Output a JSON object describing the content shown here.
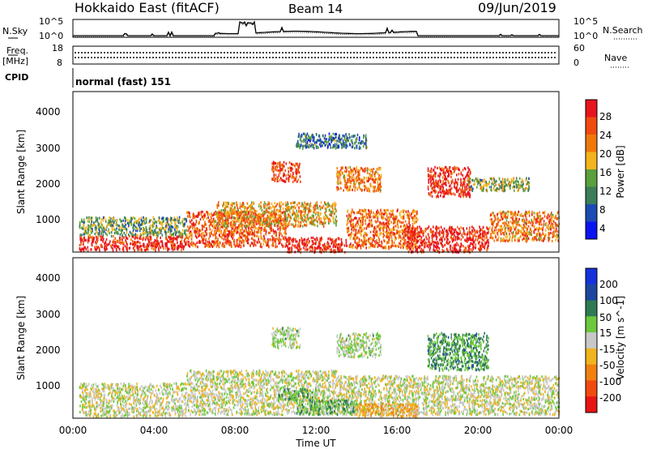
{
  "header": {
    "site": "Hokkaido East (fitACF)",
    "beam": "Beam 14",
    "date": "09/Jun/2019"
  },
  "noise_panel": {
    "left_label": "N.Sky",
    "right_label": "N.Search",
    "ticks": [
      "10^5",
      "10^0"
    ]
  },
  "freq_panel": {
    "left_label_1": "Freq.",
    "left_label_2": "[MHz]",
    "left_ticks": [
      "18",
      "8"
    ],
    "right_label": "Nave",
    "right_ticks": [
      "60",
      "0"
    ]
  },
  "cpid_panel": {
    "label": "CPID",
    "mode": "normal (fast) 151"
  },
  "chart_data": [
    {
      "type": "heatmap",
      "title": "",
      "xlabel": "Time UT",
      "ylabel": "Slant Range [km]",
      "y_ticks": [
        "4000",
        "3000",
        "2000",
        "1000"
      ],
      "x_ticks": [
        "00:00",
        "04:00",
        "08:00",
        "12:00",
        "16:00",
        "20:00",
        "00:00"
      ],
      "ylim": [
        180,
        4500
      ],
      "xlim": [
        0,
        24
      ],
      "colorbar": {
        "label": "Power [dB]",
        "tick_labels": [
          "28",
          "24",
          "20",
          "16",
          "12",
          "8",
          "4"
        ],
        "colors": [
          "#e8141e",
          "#f04a10",
          "#f0780a",
          "#f4b41e",
          "#5aa03c",
          "#3c7e58",
          "#1e4ab4",
          "#0a14f0"
        ]
      },
      "regions": [
        {
          "t": [
            0.3,
            5.6
          ],
          "r": [
            250,
            640
          ],
          "level": 0.92
        },
        {
          "t": [
            0.3,
            5.6
          ],
          "r": [
            640,
            1150
          ],
          "level": 0.4
        },
        {
          "t": [
            5.6,
            10.5
          ],
          "r": [
            350,
            1300
          ],
          "level": 0.78
        },
        {
          "t": [
            7.0,
            13.0
          ],
          "r": [
            900,
            1550
          ],
          "level": 0.62
        },
        {
          "t": [
            10.5,
            13.5
          ],
          "r": [
            200,
            600
          ],
          "level": 0.95
        },
        {
          "t": [
            13.5,
            17.0
          ],
          "r": [
            300,
            1350
          ],
          "level": 0.72
        },
        {
          "t": [
            16.5,
            20.5
          ],
          "r": [
            200,
            900
          ],
          "level": 0.93
        },
        {
          "t": [
            20.5,
            24.0
          ],
          "r": [
            500,
            1300
          ],
          "level": 0.7
        },
        {
          "t": [
            9.8,
            11.2
          ],
          "r": [
            2100,
            2650
          ],
          "level": 0.85
        },
        {
          "t": [
            13.0,
            15.2
          ],
          "r": [
            1850,
            2500
          ],
          "level": 0.7
        },
        {
          "t": [
            17.5,
            19.6
          ],
          "r": [
            1700,
            2500
          ],
          "level": 0.9
        },
        {
          "t": [
            19.5,
            22.5
          ],
          "r": [
            1850,
            2200
          ],
          "level": 0.45
        },
        {
          "t": [
            11.0,
            14.5
          ],
          "r": [
            3000,
            3400
          ],
          "level": 0.3
        }
      ]
    },
    {
      "type": "heatmap",
      "title": "",
      "xlabel": "Time UT",
      "ylabel": "Slant Range [km]",
      "y_ticks": [
        "4000",
        "3000",
        "2000",
        "1000"
      ],
      "x_ticks": [
        "00:00",
        "04:00",
        "08:00",
        "12:00",
        "16:00",
        "20:00",
        "00:00"
      ],
      "ylim": [
        180,
        4500
      ],
      "xlim": [
        0,
        24
      ],
      "colorbar": {
        "label": "Velocity [m s^-1]",
        "tick_labels": [
          "200",
          "100",
          "50",
          "15",
          "-15",
          "-50",
          "-100",
          "-200"
        ],
        "colors": [
          "#1432dc",
          "#1e46a0",
          "#2f7a54",
          "#6cc83c",
          "#c8c8c8",
          "#f0b41e",
          "#f08010",
          "#f04a10",
          "#e81414"
        ]
      },
      "regions": [
        {
          "t": [
            0.3,
            5.6
          ],
          "r": [
            250,
            1150
          ],
          "level": 0.5
        },
        {
          "t": [
            5.6,
            13.0
          ],
          "r": [
            300,
            1500
          ],
          "level": 0.5
        },
        {
          "t": [
            13.0,
            24.0
          ],
          "r": [
            300,
            1350
          ],
          "level": 0.5
        },
        {
          "t": [
            11.0,
            14.0
          ],
          "r": [
            300,
            700
          ],
          "level": 0.65
        },
        {
          "t": [
            14.0,
            17.0
          ],
          "r": [
            250,
            600
          ],
          "level": 0.35
        },
        {
          "t": [
            9.8,
            11.2
          ],
          "r": [
            2100,
            2650
          ],
          "level": 0.55
        },
        {
          "t": [
            13.0,
            15.2
          ],
          "r": [
            1850,
            2500
          ],
          "level": 0.55
        },
        {
          "t": [
            17.5,
            20.5
          ],
          "r": [
            1500,
            2500
          ],
          "level": 0.68
        },
        {
          "t": [
            10.0,
            12.0
          ],
          "r": [
            700,
            1000
          ],
          "level": 0.65
        }
      ]
    }
  ]
}
